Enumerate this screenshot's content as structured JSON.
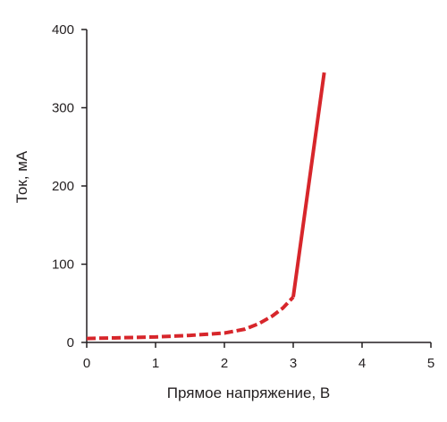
{
  "chart_data": {
    "type": "line",
    "title": "",
    "xlabel": "Прямое напряжение, В",
    "ylabel": "Ток, мА",
    "xlim": [
      0,
      5
    ],
    "ylim": [
      0,
      400
    ],
    "xticks": [
      0,
      1,
      2,
      3,
      4,
      5
    ],
    "yticks": [
      0,
      100,
      200,
      300,
      400
    ],
    "xtick_labels": [
      "0",
      "1",
      "2",
      "3",
      "4",
      "5"
    ],
    "ytick_labels": [
      "0",
      "100",
      "200",
      "300",
      "400"
    ],
    "grid": false,
    "legend": "none",
    "series": [
      {
        "style": "dashed",
        "color": "#d7262b",
        "x": [
          0,
          0.5,
          1,
          1.5,
          2,
          2.3,
          2.5,
          2.7,
          2.85,
          3.0
        ],
        "y": [
          5,
          6,
          7,
          9,
          12,
          17,
          24,
          34,
          44,
          58
        ]
      },
      {
        "style": "solid",
        "color": "#d7262b",
        "x": [
          3.0,
          3.45
        ],
        "y": [
          58,
          345
        ]
      }
    ]
  }
}
